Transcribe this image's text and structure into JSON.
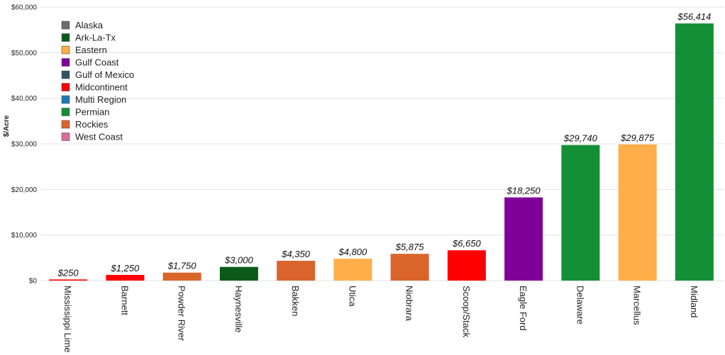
{
  "chart_data": {
    "type": "bar",
    "title": "",
    "xlabel": "",
    "ylabel": "$/Acre",
    "ylim": [
      0,
      60000
    ],
    "yticks": [
      0,
      10000,
      20000,
      30000,
      40000,
      50000,
      60000
    ],
    "ytick_labels": [
      "$0",
      "$10,000",
      "$20,000",
      "$30,000",
      "$40,000",
      "$50,000",
      "$60,000"
    ],
    "grid": true,
    "legend_position": "top-left",
    "categories": [
      "Mississippi Lime",
      "Barnett",
      "Powder River",
      "Haynesville",
      "Bakken",
      "Utica",
      "Niobrara",
      "Scoop/Stack",
      "Eagle Ford",
      "Delaware",
      "Marcellus",
      "Midland"
    ],
    "values": [
      250,
      1250,
      1750,
      3000,
      4350,
      4800,
      5875,
      6650,
      18250,
      29740,
      29875,
      56414
    ],
    "data_labels": [
      "$250",
      "$1,250",
      "$1,750",
      "$3,000",
      "$4,350",
      "$4,800",
      "$5,875",
      "$6,650",
      "$18,250",
      "$29,740",
      "$29,875",
      "$56,414"
    ],
    "regions": [
      "Midcontinent",
      "Midcontinent",
      "Rockies",
      "Ark-La-Tx",
      "Rockies",
      "Eastern",
      "Rockies",
      "Midcontinent",
      "Gulf Coast",
      "Permian",
      "Eastern",
      "Permian"
    ],
    "legend": [
      {
        "name": "Alaska",
        "color": "#6b6b6b"
      },
      {
        "name": "Ark-La-Tx",
        "color": "#0b5a1a"
      },
      {
        "name": "Eastern",
        "color": "#ffae4a"
      },
      {
        "name": "Gulf Coast",
        "color": "#7e0099"
      },
      {
        "name": "Gulf of Mexico",
        "color": "#2f5563"
      },
      {
        "name": "Midcontinent",
        "color": "#ff0000"
      },
      {
        "name": "Multi Region",
        "color": "#1f78b4"
      },
      {
        "name": "Permian",
        "color": "#138f35"
      },
      {
        "name": "Rockies",
        "color": "#d9652d"
      },
      {
        "name": "West Coast",
        "color": "#d66e9c"
      }
    ]
  }
}
